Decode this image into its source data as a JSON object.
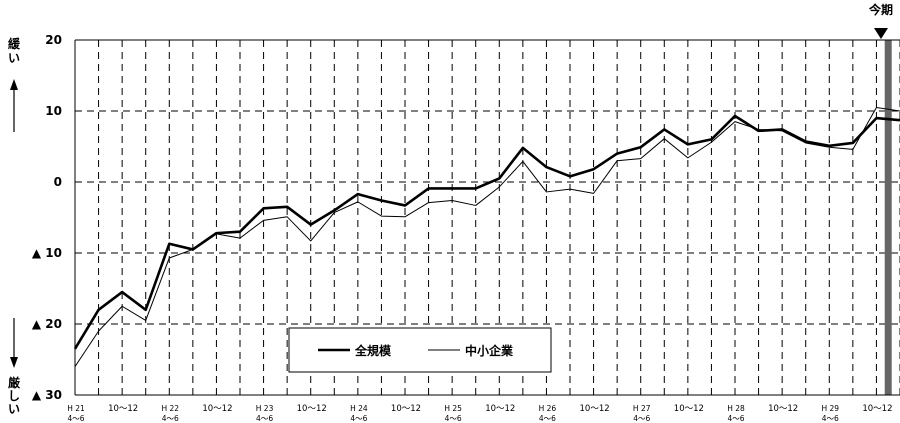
{
  "chart_data": {
    "type": "line",
    "title": "",
    "xlabel": "",
    "ylabel": "",
    "y_axis_top_label": "緩い",
    "y_axis_bottom_label": "厳しい",
    "current_marker_label": "今期",
    "ylim": [
      -30,
      20
    ],
    "y_ticks": [
      {
        "value": 20,
        "label": "20"
      },
      {
        "value": 10,
        "label": "10"
      },
      {
        "value": 0,
        "label": "0"
      },
      {
        "value": -10,
        "label": "▲ 10"
      },
      {
        "value": -20,
        "label": "▲ 20"
      },
      {
        "value": -30,
        "label": "▲ 30"
      }
    ],
    "x_ticks": [
      {
        "index": 0,
        "line1": "H 21",
        "line2": "4～6"
      },
      {
        "index": 2,
        "line1": "10～12",
        "line2": ""
      },
      {
        "index": 4,
        "line1": "H 22",
        "line2": "4～6"
      },
      {
        "index": 6,
        "line1": "10～12",
        "line2": ""
      },
      {
        "index": 8,
        "line1": "H 23",
        "line2": "4～6"
      },
      {
        "index": 10,
        "line1": "10～12",
        "line2": ""
      },
      {
        "index": 12,
        "line1": "H 24",
        "line2": "4～6"
      },
      {
        "index": 14,
        "line1": "10～12",
        "line2": ""
      },
      {
        "index": 16,
        "line1": "H 25",
        "line2": "4～6"
      },
      {
        "index": 18,
        "line1": "10～12",
        "line2": ""
      },
      {
        "index": 20,
        "line1": "H 26",
        "line2": "4～6"
      },
      {
        "index": 22,
        "line1": "10～12",
        "line2": ""
      },
      {
        "index": 24,
        "line1": "H 27",
        "line2": "4～6"
      },
      {
        "index": 26,
        "line1": "10～12",
        "line2": ""
      },
      {
        "index": 28,
        "line1": "H 28",
        "line2": "4～6"
      },
      {
        "index": 30,
        "line1": "10～12",
        "line2": ""
      },
      {
        "index": 32,
        "line1": "H 29",
        "line2": "4～6"
      },
      {
        "index": 34,
        "line1": "10～12",
        "line2": ""
      }
    ],
    "x_count": 36,
    "current_index": 34,
    "grid": true,
    "legend_position": "bottom-center",
    "series": [
      {
        "name": "全規模",
        "style": "thick",
        "color": "#000000",
        "values": [
          -23.5,
          -18,
          -15.5,
          -18,
          -8.7,
          -9.5,
          -7.2,
          -7,
          -3.7,
          -3.5,
          -6,
          -4,
          -1.7,
          -2.6,
          -3.3,
          -0.9,
          -0.9,
          -0.9,
          0.5,
          4.8,
          2.1,
          0.8,
          1.8,
          4,
          4.9,
          7.4,
          5.3,
          6,
          9.3,
          7.2,
          7.4,
          5.7,
          5.1,
          5.5,
          9,
          8.7
        ]
      },
      {
        "name": "中小企業",
        "style": "thin",
        "color": "#000000",
        "values": [
          -26,
          -21,
          -17.5,
          -19.5,
          -10.7,
          -9.5,
          -7.3,
          -7.9,
          -5.4,
          -4.9,
          -8.3,
          -4.3,
          -2.8,
          -4.8,
          -4.9,
          -2.9,
          -2.6,
          -3.3,
          -0.7,
          2.9,
          -1.4,
          -1,
          -1.6,
          3,
          3.3,
          6.1,
          3.4,
          5.6,
          8.5,
          7.4,
          7.2,
          5.5,
          4.9,
          4.6,
          10.5,
          10
        ]
      }
    ]
  }
}
